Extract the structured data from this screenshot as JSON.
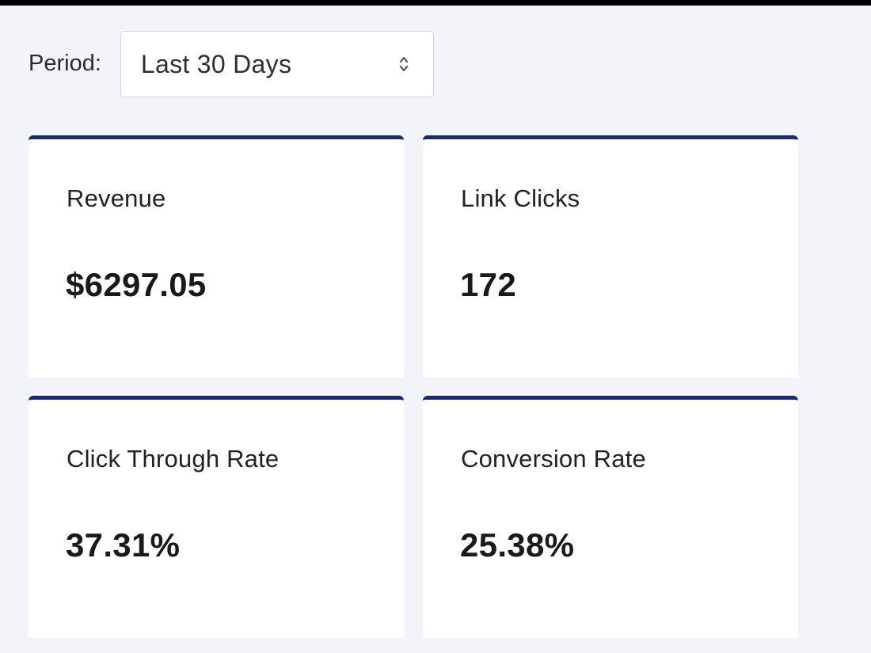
{
  "filter": {
    "label": "Period:",
    "selected": "Last 30 Days"
  },
  "metrics": [
    {
      "title": "Revenue",
      "value": "$6297.05"
    },
    {
      "title": "Link Clicks",
      "value": "172"
    },
    {
      "title": "Click Through Rate",
      "value": "37.31%"
    },
    {
      "title": "Conversion Rate",
      "value": "25.38%"
    }
  ],
  "colors": {
    "page_background": "#f3f3fa",
    "card_accent": "#1b2a6f",
    "card_background": "#ffffff"
  },
  "icons": {
    "select_arrow": "up-down-chevron-icon"
  }
}
